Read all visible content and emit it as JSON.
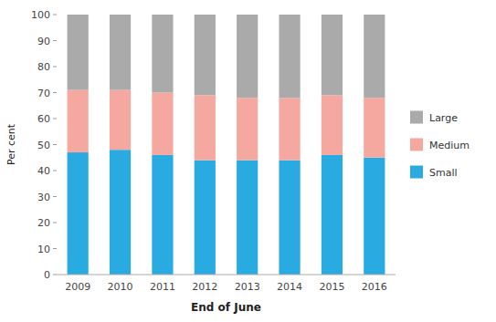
{
  "chart_data": {
    "type": "bar",
    "stacked": true,
    "xlabel": "End of June",
    "ylabel": "Per cent",
    "categories": [
      "2009",
      "2010",
      "2011",
      "2012",
      "2013",
      "2014",
      "2015",
      "2016"
    ],
    "series": [
      {
        "name": "Small",
        "color": "#29ABE2",
        "values": [
          47,
          48,
          46,
          44,
          44,
          44,
          46,
          45
        ]
      },
      {
        "name": "Medium",
        "color": "#F4A8A0",
        "values": [
          24,
          23,
          24,
          25,
          24,
          24,
          23,
          23
        ]
      },
      {
        "name": "Large",
        "color": "#AAAAAA",
        "values": [
          29,
          29,
          30,
          31,
          32,
          32,
          31,
          32
        ]
      }
    ],
    "ylim": [
      0,
      100
    ],
    "yticks": [
      0,
      10,
      20,
      30,
      40,
      50,
      60,
      70,
      80,
      90,
      100
    ],
    "grid": false,
    "legend": "right"
  }
}
